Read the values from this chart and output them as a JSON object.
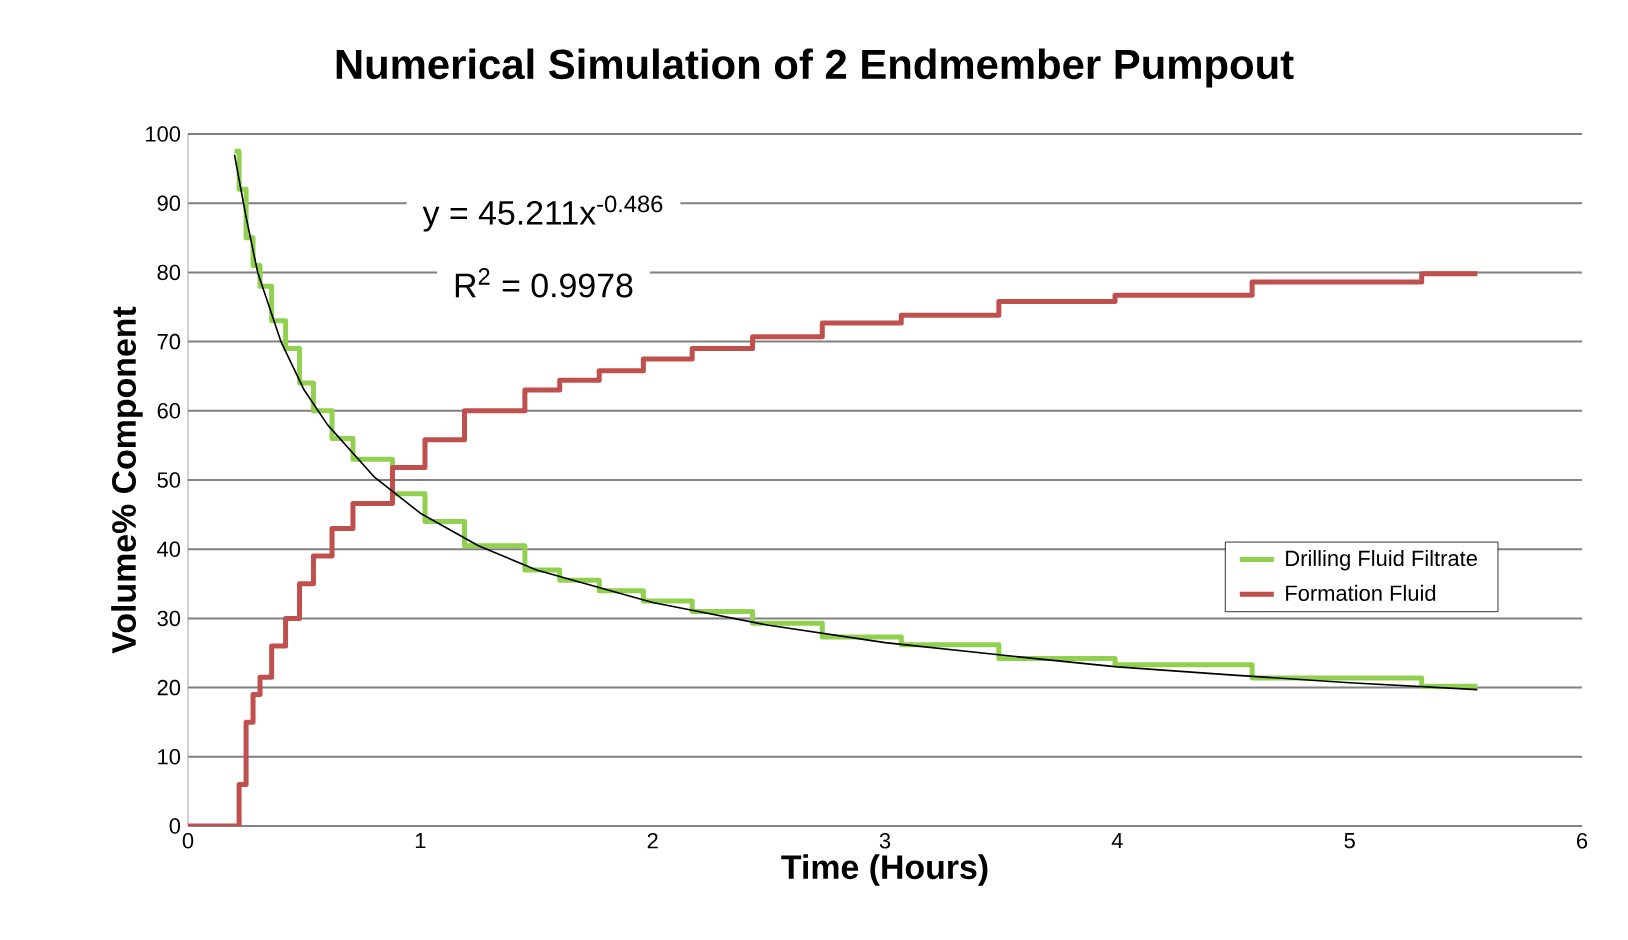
{
  "chart_data": {
    "type": "step",
    "title": "Numerical Simulation of 2 Endmember Pumpout",
    "xlabel": "Time (Hours)",
    "ylabel": "Volume% Component",
    "xlim": [
      0,
      6
    ],
    "xticks": [
      0,
      1,
      2,
      3,
      4,
      5,
      6
    ],
    "ylim": [
      0,
      100
    ],
    "yticks": [
      0,
      10,
      20,
      30,
      40,
      50,
      60,
      70,
      80,
      90,
      100
    ],
    "grid": "y",
    "legend": "right",
    "marker": "none",
    "annotations": [
      "y = 45.211x$^{-0.486}$",
      "R$^{2}$ = 0.9978"
    ],
    "series": [
      {
        "name": "Drilling Fluid Filtrate",
        "color": "#92d050",
        "x": [
          0.2,
          0.22,
          0.25,
          0.28,
          0.31,
          0.36,
          0.42,
          0.48,
          0.54,
          0.62,
          0.71,
          0.88,
          1.02,
          1.19,
          1.45,
          1.6,
          1.77,
          1.96,
          2.17,
          2.43,
          2.73,
          3.07,
          3.49,
          3.99,
          4.58,
          5.31,
          5.55
        ],
        "values": [
          97.5,
          92,
          85,
          81,
          78,
          73,
          69,
          64,
          60,
          56,
          53,
          48,
          44,
          40.5,
          37,
          35.5,
          34,
          32.5,
          31,
          29.3,
          27.3,
          26.2,
          24.2,
          23.3,
          21.4,
          20.2,
          20.2
        ]
      },
      {
        "name": "Formation Fluid",
        "color": "#c0504d",
        "x": [
          0,
          0.2,
          0.22,
          0.25,
          0.28,
          0.31,
          0.36,
          0.42,
          0.48,
          0.54,
          0.62,
          0.71,
          0.88,
          1.02,
          1.19,
          1.45,
          1.6,
          1.77,
          1.96,
          2.17,
          2.43,
          2.73,
          3.07,
          3.49,
          3.99,
          4.58,
          5.31,
          5.55
        ],
        "values": [
          0,
          0,
          6,
          15,
          19,
          21.5,
          26,
          30,
          35,
          39,
          43,
          46.6,
          51.8,
          55.8,
          60,
          63,
          64.4,
          65.8,
          67.5,
          69,
          70.7,
          72.7,
          73.8,
          75.8,
          76.7,
          78.6,
          79.8,
          79.8
        ]
      },
      {
        "color": "#000000",
        "type": "line",
        "x": [
          0.2,
          0.25,
          0.3,
          0.4,
          0.5,
          0.6,
          0.8,
          1,
          1.25,
          1.5,
          2,
          2.5,
          3,
          3.5,
          4,
          4.5,
          5,
          5.55
        ],
        "values": [
          97,
          88,
          80,
          70,
          63,
          58,
          50.5,
          45.2,
          40.5,
          37,
          32.3,
          29,
          26.5,
          24.7,
          23,
          21.8,
          20.7,
          19.7
        ]
      }
    ]
  }
}
